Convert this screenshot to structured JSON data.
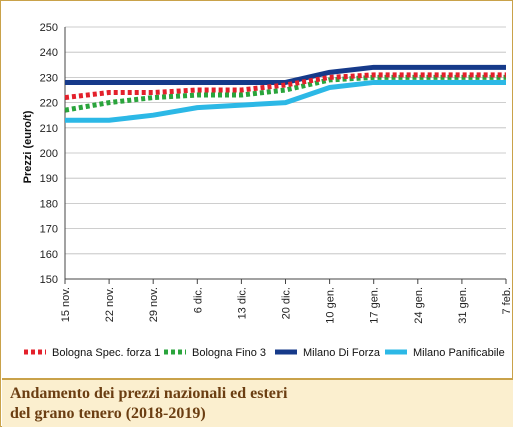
{
  "chart_data": {
    "type": "line",
    "title": "Andamento dei prezzi nazionali ed esteri\ndel grano tenero (2018-2019)",
    "ylabel": "Prezzi (euro/t)",
    "xlabel": "",
    "ylim": [
      150,
      250
    ],
    "yticks": [
      150,
      160,
      170,
      180,
      190,
      200,
      210,
      220,
      230,
      240,
      250
    ],
    "categories": [
      "15 nov.",
      "22 nov.",
      "29 nov.",
      "6 dic.",
      "13 dic.",
      "20 dic.",
      "10 gen.",
      "17 gen.",
      "24 gen.",
      "31 gen.",
      "7 feb."
    ],
    "grid": "horizontal",
    "legend_position": "bottom",
    "series": [
      {
        "name": "Bologna Spec. forza 1",
        "color": "#e3202b",
        "style": "dotted",
        "values": [
          222,
          224,
          224,
          225,
          225,
          227,
          230,
          231,
          231,
          231,
          231
        ]
      },
      {
        "name": "Bologna Fino 3",
        "color": "#2aa43c",
        "style": "dotted",
        "values": [
          217,
          220,
          222,
          223,
          223,
          225,
          229,
          230,
          230,
          230,
          230
        ]
      },
      {
        "name": "Milano Di Forza",
        "color": "#163a8a",
        "style": "solid",
        "values": [
          228,
          228,
          228,
          228,
          228,
          228,
          232,
          234,
          234,
          234,
          234
        ]
      },
      {
        "name": "Milano Panificabile",
        "color": "#2cb8e6",
        "style": "solid",
        "values": [
          213,
          213,
          215,
          218,
          219,
          220,
          226,
          228,
          228,
          228,
          228
        ]
      }
    ]
  }
}
